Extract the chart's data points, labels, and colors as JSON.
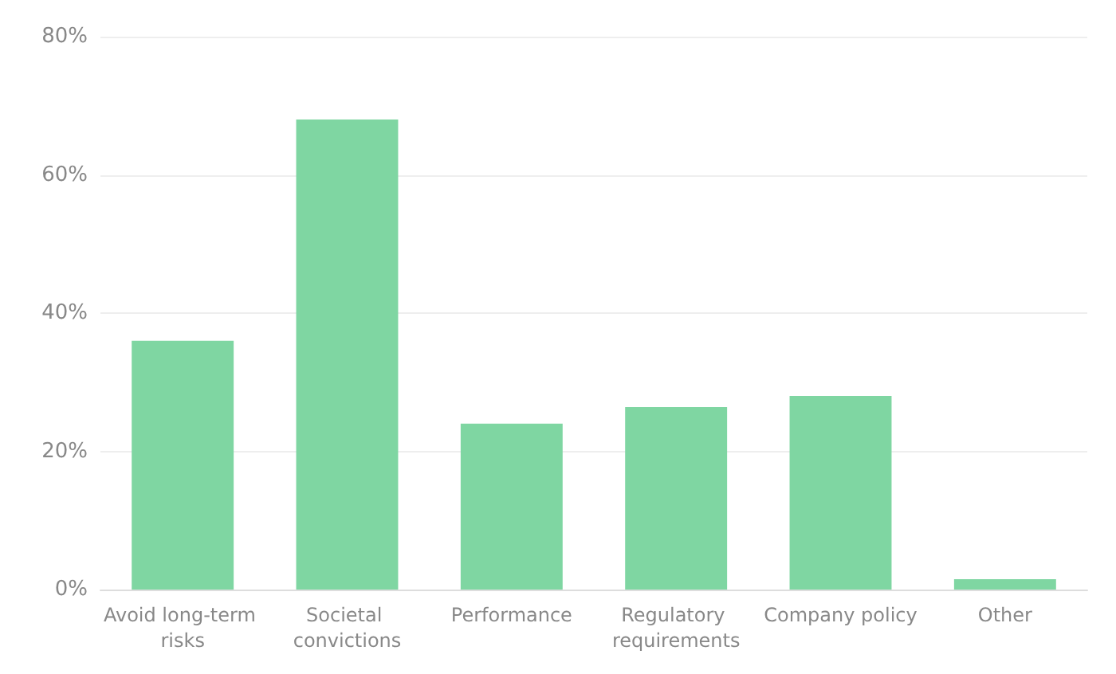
{
  "chart_data": {
    "type": "bar",
    "categories": [
      "Avoid long-term risks",
      "Societal convictions",
      "Performance",
      "Regulatory requirements",
      "Company policy",
      "Other"
    ],
    "values": [
      36,
      68,
      24,
      26.4,
      28,
      1.5
    ],
    "color": "#7fd6a2",
    "ylim": [
      0,
      80
    ],
    "yticks": [
      {
        "value": 0,
        "label": "0%"
      },
      {
        "value": 20,
        "label": "20%"
      },
      {
        "value": 40,
        "label": "40%"
      },
      {
        "value": 60,
        "label": "60%"
      },
      {
        "value": 80,
        "label": "80%"
      }
    ],
    "grid": "y"
  }
}
